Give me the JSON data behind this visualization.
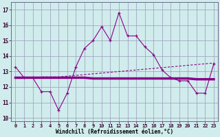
{
  "x": [
    0,
    1,
    2,
    3,
    4,
    5,
    6,
    7,
    8,
    9,
    10,
    11,
    12,
    13,
    14,
    15,
    16,
    17,
    18,
    19,
    20,
    21,
    22,
    23
  ],
  "line1": [
    13.3,
    12.6,
    12.6,
    11.7,
    11.7,
    10.5,
    11.6,
    13.3,
    14.5,
    15.0,
    15.9,
    15.0,
    16.8,
    15.3,
    15.3,
    14.6,
    14.1,
    13.1,
    12.6,
    12.4,
    12.4,
    11.6,
    11.6,
    13.5
  ],
  "line2": [
    12.6,
    12.6,
    12.6,
    12.6,
    12.6,
    12.6,
    12.6,
    12.6,
    12.6,
    12.55,
    12.55,
    12.55,
    12.55,
    12.55,
    12.55,
    12.55,
    12.55,
    12.55,
    12.55,
    12.55,
    12.55,
    12.5,
    12.5,
    12.5
  ],
  "line3": [
    12.55,
    12.55,
    12.6,
    12.65,
    12.65,
    12.65,
    12.7,
    12.75,
    12.8,
    12.85,
    12.9,
    12.95,
    13.0,
    13.05,
    13.1,
    13.15,
    13.2,
    13.25,
    13.3,
    13.35,
    13.4,
    13.45,
    13.5,
    13.55
  ],
  "line_color": "#880088",
  "bg_color": "#d0ecec",
  "grid_color": "#9999bb",
  "xlabel_text": "Windchill (Refroidissement éolien,°C)",
  "yticks": [
    10,
    11,
    12,
    13,
    14,
    15,
    16,
    17
  ],
  "xticks": [
    0,
    1,
    2,
    3,
    4,
    5,
    6,
    7,
    8,
    9,
    10,
    11,
    12,
    13,
    14,
    15,
    16,
    17,
    18,
    19,
    20,
    21,
    22,
    23
  ],
  "ylim": [
    9.8,
    17.5
  ],
  "xlim": [
    -0.5,
    23.5
  ]
}
